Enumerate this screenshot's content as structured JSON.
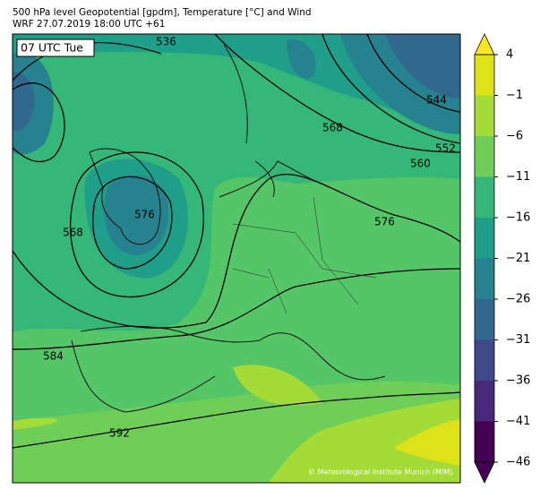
{
  "header": {
    "title": "500 hPa level Geopotential [gpdm], Temperature [°C] and Wind",
    "subtitle": "WRF 27.07.2019 18:00 UTC +61"
  },
  "map": {
    "time_label": "07 UTC Tue",
    "contour_labels": [
      "536",
      "568",
      "568",
      "560",
      "552",
      "544",
      "576",
      "576",
      "584",
      "592"
    ],
    "credit": "© Meteorological Institute Munich (MIM)"
  },
  "colorbar": {
    "ticks": [
      4,
      {
        "value": -1,
        "label": "−1"
      },
      {
        "value": -6,
        "label": "−6"
      },
      {
        "value": -11,
        "label": "−11"
      },
      {
        "value": -16,
        "label": "−16"
      },
      {
        "value": -21,
        "label": "−21"
      },
      {
        "value": -26,
        "label": "−26"
      },
      {
        "value": -31,
        "label": "−31"
      },
      {
        "value": -36,
        "label": "−36"
      },
      {
        "value": -41,
        "label": "−41"
      },
      {
        "value": -46,
        "label": "−46"
      }
    ],
    "colors": [
      "#fde725",
      "#dde318",
      "#a5db36",
      "#6ece58",
      "#35b779",
      "#1f9e89",
      "#26828e",
      "#31688e",
      "#3e4989",
      "#482878",
      "#440154",
      "#440154"
    ]
  }
}
